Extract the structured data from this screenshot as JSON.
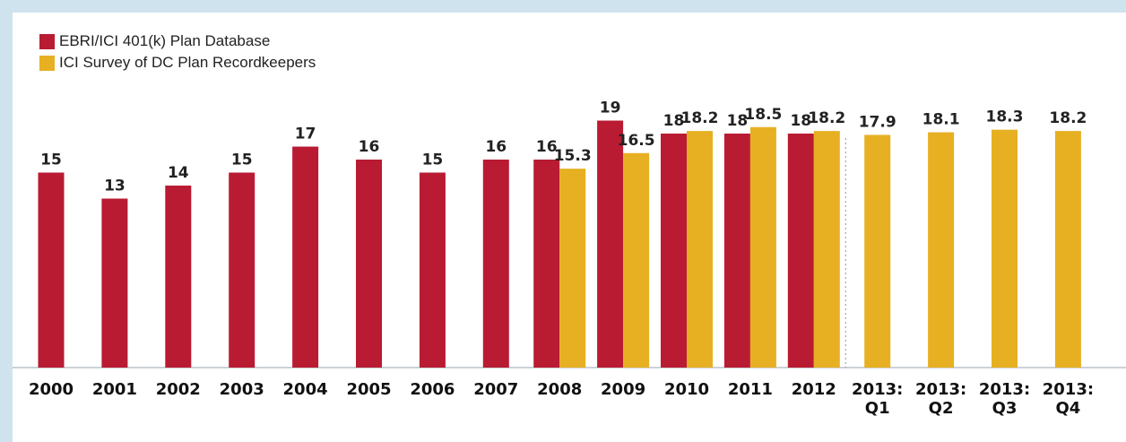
{
  "legend": {
    "items": [
      {
        "label": "EBRI/ICI 401(k) Plan Database",
        "color": "#b91b33"
      },
      {
        "label": "ICI Survey of DC Plan Recordkeepers",
        "color": "#e6b022"
      }
    ]
  },
  "chart_data": {
    "type": "bar",
    "categories": [
      [
        "2000"
      ],
      [
        "2001"
      ],
      [
        "2002"
      ],
      [
        "2003"
      ],
      [
        "2004"
      ],
      [
        "2005"
      ],
      [
        "2006"
      ],
      [
        "2007"
      ],
      [
        "2008"
      ],
      [
        "2009"
      ],
      [
        "2010"
      ],
      [
        "2011"
      ],
      [
        "2012"
      ],
      [
        "2013:",
        "Q1"
      ],
      [
        "2013:",
        "Q2"
      ],
      [
        "2013:",
        "Q3"
      ],
      [
        "2013:",
        "Q4"
      ]
    ],
    "series": [
      {
        "name": "EBRI/ICI 401(k) Plan Database",
        "color": "#b91b33",
        "values": [
          15,
          13,
          14,
          15,
          17,
          16,
          15,
          16,
          16,
          19,
          18,
          18,
          18,
          null,
          null,
          null,
          null
        ],
        "labels": [
          "15",
          "13",
          "14",
          "15",
          "17",
          "16",
          "15",
          "16",
          "16",
          "19",
          "18",
          "18",
          "18",
          null,
          null,
          null,
          null
        ]
      },
      {
        "name": "ICI Survey of DC Plan Recordkeepers",
        "color": "#e6b022",
        "values": [
          null,
          null,
          null,
          null,
          null,
          null,
          null,
          null,
          15.3,
          16.5,
          18.2,
          18.5,
          18.2,
          17.9,
          18.1,
          18.3,
          18.2
        ],
        "labels": [
          null,
          null,
          null,
          null,
          null,
          null,
          null,
          null,
          "15.3",
          "16.5",
          "18.2",
          "18.5",
          "18.2",
          "17.9",
          "18.1",
          "18.3",
          "18.2"
        ]
      }
    ],
    "ylim": [
      0,
      20
    ],
    "grid": false,
    "legend_position": "top-left",
    "divider_after_category": "2012"
  }
}
